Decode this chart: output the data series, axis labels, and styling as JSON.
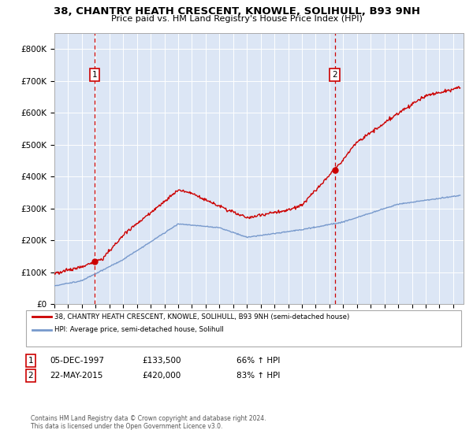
{
  "title": "38, CHANTRY HEATH CRESCENT, KNOWLE, SOLIHULL, B93 9NH",
  "subtitle": "Price paid vs. HM Land Registry's House Price Index (HPI)",
  "background_color": "#e8eef8",
  "plot_background": "#dce6f5",
  "legend_label_red": "38, CHANTRY HEATH CRESCENT, KNOWLE, SOLIHULL, B93 9NH (semi-detached house)",
  "legend_label_blue": "HPI: Average price, semi-detached house, Solihull",
  "annotation1_date": "05-DEC-1997",
  "annotation1_price": "£133,500",
  "annotation1_hpi": "66% ↑ HPI",
  "annotation2_date": "22-MAY-2015",
  "annotation2_price": "£420,000",
  "annotation2_hpi": "83% ↑ HPI",
  "footer": "Contains HM Land Registry data © Crown copyright and database right 2024.\nThis data is licensed under the Open Government Licence v3.0.",
  "ylim": [
    0,
    850000
  ],
  "yticks": [
    0,
    100000,
    200000,
    300000,
    400000,
    500000,
    600000,
    700000,
    800000
  ],
  "sale1_year": 1997.92,
  "sale1_price": 133500,
  "sale2_year": 2015.39,
  "sale2_price": 420000,
  "red_line_color": "#cc0000",
  "blue_line_color": "#7799cc",
  "vline_color": "#cc0000",
  "grid_color": "#ffffff",
  "border_color": "#aaaaaa"
}
